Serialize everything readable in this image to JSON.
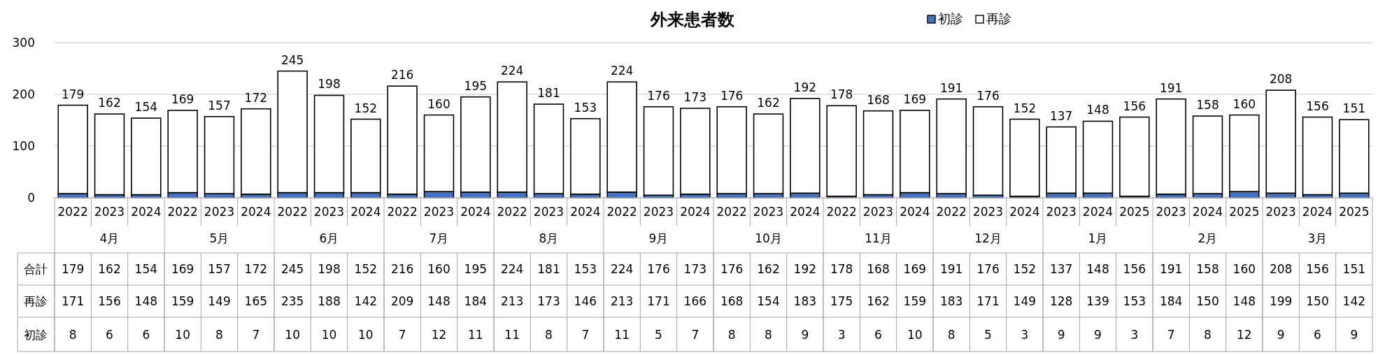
{
  "chart_data": {
    "type": "bar",
    "title": "外来患者数",
    "stacked": true,
    "legend": "top",
    "grid": "y",
    "data_labels": true,
    "ylim": [
      0,
      300
    ],
    "yticks": [
      0,
      100,
      200,
      300
    ],
    "categories": [
      "2022",
      "2023",
      "2024",
      "2022",
      "2023",
      "2024",
      "2022",
      "2023",
      "2024",
      "2022",
      "2023",
      "2024",
      "2022",
      "2023",
      "2024",
      "2022",
      "2023",
      "2024",
      "2022",
      "2023",
      "2024",
      "2022",
      "2023",
      "2024",
      "2022",
      "2023",
      "2024",
      "2023",
      "2024",
      "2025",
      "2023",
      "2024",
      "2025",
      "2023",
      "2024",
      "2025"
    ],
    "annotations": [
      "合計",
      "4月",
      "5月",
      "6月",
      "7月",
      "8月",
      "9月",
      "10月",
      "11月",
      "12月",
      "1月",
      "2月",
      "3月"
    ],
    "series": [
      {
        "name": "初診",
        "color": "#4472c4",
        "values": [
          8,
          6,
          6,
          10,
          8,
          7,
          10,
          10,
          10,
          7,
          12,
          11,
          11,
          8,
          7,
          11,
          5,
          7,
          8,
          8,
          9,
          3,
          6,
          10,
          8,
          5,
          3,
          9,
          9,
          3,
          7,
          8,
          12,
          9,
          6,
          9
        ]
      },
      {
        "name": "再診",
        "color": "#ffffff",
        "values": [
          171,
          156,
          148,
          159,
          149,
          165,
          235,
          188,
          142,
          209,
          148,
          184,
          213,
          173,
          146,
          213,
          171,
          166,
          168,
          154,
          183,
          175,
          162,
          159,
          183,
          171,
          149,
          128,
          139,
          153,
          184,
          150,
          148,
          199,
          150,
          142
        ]
      }
    ],
    "totals": [
      "179",
      "162",
      "154",
      "169",
      "157",
      "172",
      "245",
      "198",
      "152",
      "216",
      "160",
      "195",
      "224",
      "181",
      "153",
      "224",
      "176",
      "173",
      "176",
      "162",
      "192",
      "178",
      "168",
      "169",
      "191",
      "176",
      "152",
      "137",
      "148",
      "156",
      "191",
      "158",
      "160",
      "208",
      "156",
      "151"
    ]
  }
}
